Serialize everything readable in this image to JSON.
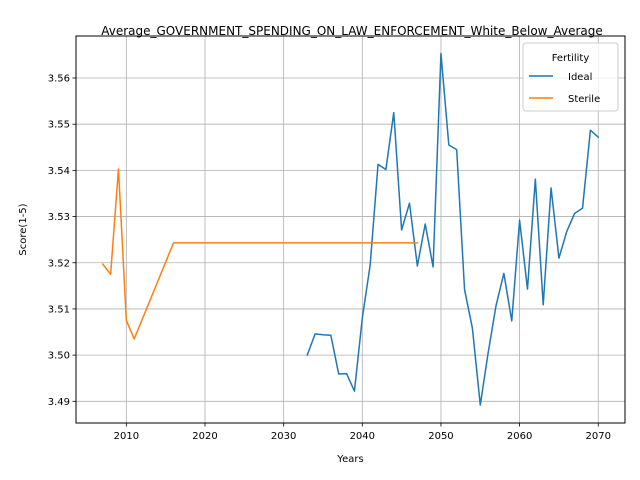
{
  "chart_data": {
    "type": "line",
    "title": "Average_GOVERNMENT_SPENDING_ON_LAW_ENFORCEMENT_White_Below_Average",
    "xlabel": "Years",
    "ylabel": "Score(1-5)",
    "xlim": [
      2003.6,
      2073.4
    ],
    "ylim": [
      3.4853,
      3.5691
    ],
    "xticks": [
      2010,
      2020,
      2030,
      2040,
      2050,
      2060,
      2070
    ],
    "yticks": [
      3.49,
      3.5,
      3.51,
      3.52,
      3.53,
      3.54,
      3.55,
      3.56
    ],
    "ytick_labels": [
      "3.49",
      "3.50",
      "3.51",
      "3.52",
      "3.53",
      "3.54",
      "3.55",
      "3.56"
    ],
    "grid": true,
    "legend": {
      "title": "Fertility",
      "position": "upper right"
    },
    "series": [
      {
        "name": "Ideal",
        "color": "#1f77b4",
        "x": [
          2033,
          2034,
          2035,
          2036,
          2037,
          2038,
          2039,
          2040,
          2041,
          2042,
          2043,
          2044,
          2045,
          2046,
          2047,
          2048,
          2049,
          2050,
          2051,
          2052,
          2053,
          2054,
          2055,
          2056,
          2057,
          2058,
          2059,
          2060,
          2061,
          2062,
          2063,
          2064,
          2065,
          2066,
          2067,
          2068,
          2069,
          2070
        ],
        "y": [
          3.5,
          3.5046,
          3.5044,
          3.5043,
          3.4959,
          3.496,
          3.4922,
          3.508,
          3.5195,
          3.5413,
          3.5402,
          3.5525,
          3.5271,
          3.5329,
          3.5193,
          3.5284,
          3.5191,
          3.5653,
          3.5455,
          3.5445,
          3.5142,
          3.5058,
          3.4892,
          3.5005,
          3.5107,
          3.5177,
          3.5074,
          3.5292,
          3.5143,
          3.5381,
          3.5109,
          3.5362,
          3.521,
          3.5268,
          3.5307,
          3.5318,
          3.5487,
          3.5472
        ]
      },
      {
        "name": "Sterile",
        "color": "#ff7f0e",
        "x": [
          2007,
          2008,
          2009,
          2010,
          2011,
          2016,
          2020,
          2025,
          2030,
          2035,
          2040,
          2045,
          2047
        ],
        "y": [
          3.5197,
          3.5175,
          3.5403,
          3.5075,
          3.5035,
          3.5243,
          3.5243,
          3.5243,
          3.5243,
          3.5243,
          3.5243,
          3.5243,
          3.5243
        ]
      }
    ]
  }
}
